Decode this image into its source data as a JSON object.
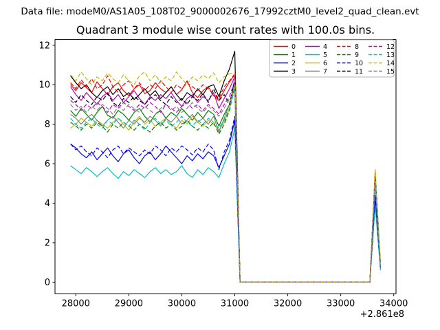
{
  "header": {
    "data_file_label": "Data file: modeM0/AS1A05_108T02_9000002676_17992cztM0_level2_quad_clean.evt"
  },
  "chart_title": "Quadrant 3 module wise count rates with 100.0s bins.",
  "chart_data": {
    "type": "line",
    "title": "Quadrant 3 module wise count rates with 100.0s bins.",
    "xlabel": "",
    "ylabel": "",
    "grid": false,
    "legend_position": "upper right",
    "x_offset_label": "+2.861e8",
    "xticks": [
      28000,
      29000,
      30000,
      31000,
      32000,
      33000,
      34000
    ],
    "yticks": [
      0,
      2,
      4,
      6,
      8,
      10,
      12
    ],
    "xlim": [
      27607,
      34043
    ],
    "ylim": [
      -0.585,
      12.285
    ],
    "x": [
      27900,
      28000,
      28100,
      28200,
      28300,
      28400,
      28500,
      28600,
      28700,
      28800,
      28900,
      29000,
      29100,
      29200,
      29300,
      29400,
      29500,
      29600,
      29700,
      29800,
      29900,
      30000,
      30100,
      30200,
      30300,
      30400,
      30500,
      30600,
      30700,
      30800,
      30900,
      31000,
      31100,
      33550,
      33650,
      33750
    ],
    "series": [
      {
        "name": "0",
        "color": "#ff0000",
        "dashed": false,
        "values": [
          10.0,
          9.7,
          10.1,
          9.85,
          9.6,
          10.15,
          9.8,
          9.5,
          9.9,
          10.1,
          9.7,
          9.45,
          9.8,
          10.0,
          9.55,
          9.7,
          10.1,
          9.8,
          9.6,
          9.9,
          9.5,
          9.75,
          10.2,
          9.6,
          9.35,
          9.7,
          9.9,
          9.45,
          9.2,
          9.7,
          10.15,
          10.5,
          0,
          0,
          5.5,
          0.9
        ]
      },
      {
        "name": "1",
        "color": "#008000",
        "dashed": false,
        "values": [
          8.7,
          8.4,
          8.8,
          8.5,
          8.2,
          8.6,
          8.9,
          8.45,
          8.3,
          8.7,
          8.5,
          8.2,
          8.6,
          8.8,
          8.4,
          8.1,
          8.5,
          8.7,
          8.3,
          8.6,
          8.4,
          8.8,
          8.5,
          8.2,
          8.6,
          8.3,
          8.7,
          8.5,
          7.9,
          8.5,
          9.0,
          10.2,
          0,
          0,
          5.3,
          0.8
        ]
      },
      {
        "name": "2",
        "color": "#0000ff",
        "dashed": false,
        "values": [
          7.0,
          6.8,
          6.5,
          6.3,
          6.6,
          6.2,
          6.5,
          6.8,
          6.4,
          6.1,
          6.5,
          6.7,
          6.3,
          6.0,
          6.4,
          6.6,
          6.2,
          6.5,
          6.9,
          6.6,
          6.3,
          6.0,
          6.4,
          6.15,
          6.5,
          6.25,
          6.6,
          6.4,
          5.8,
          6.4,
          7.0,
          8.2,
          0,
          0,
          4.3,
          0.7
        ]
      },
      {
        "name": "3",
        "color": "#000000",
        "dashed": false,
        "values": [
          10.45,
          10.1,
          9.8,
          10.0,
          9.6,
          9.35,
          9.7,
          9.9,
          9.5,
          9.8,
          9.4,
          9.6,
          9.25,
          9.5,
          9.8,
          9.45,
          9.7,
          9.3,
          9.6,
          9.9,
          9.5,
          9.2,
          9.6,
          9.4,
          9.8,
          9.5,
          9.9,
          10.0,
          9.4,
          10.2,
          10.8,
          11.7,
          0,
          0,
          5.4,
          0.85
        ]
      },
      {
        "name": "4",
        "color": "#bf00bf",
        "dashed": false,
        "values": [
          9.9,
          9.5,
          9.2,
          9.6,
          9.3,
          9.0,
          9.4,
          9.6,
          9.2,
          9.5,
          9.1,
          9.4,
          9.7,
          9.3,
          9.0,
          9.4,
          9.2,
          9.5,
          9.3,
          9.6,
          9.2,
          8.9,
          9.3,
          9.5,
          9.1,
          9.4,
          9.2,
          9.6,
          8.8,
          9.3,
          9.8,
          10.4,
          0,
          0,
          5.2,
          0.8
        ]
      },
      {
        "name": "5",
        "color": "#00bfbf",
        "dashed": false,
        "values": [
          5.9,
          5.7,
          5.5,
          5.8,
          5.6,
          5.35,
          5.6,
          5.8,
          5.5,
          5.25,
          5.6,
          5.4,
          5.7,
          5.5,
          5.3,
          5.6,
          5.8,
          5.5,
          5.7,
          5.45,
          5.6,
          5.9,
          5.5,
          5.3,
          5.7,
          5.45,
          5.8,
          5.6,
          5.3,
          6.0,
          6.6,
          7.8,
          0,
          0,
          3.9,
          0.6
        ]
      },
      {
        "name": "6",
        "color": "#bfbf00",
        "dashed": false,
        "values": [
          7.8,
          8.0,
          8.3,
          8.1,
          7.9,
          8.2,
          8.0,
          7.8,
          8.1,
          8.3,
          8.0,
          7.7,
          8.1,
          8.4,
          8.0,
          8.2,
          7.9,
          8.1,
          8.3,
          8.0,
          7.8,
          8.2,
          8.0,
          8.4,
          8.1,
          7.9,
          8.2,
          8.0,
          7.7,
          8.1,
          8.8,
          10.0,
          0,
          0,
          5.7,
          0.95
        ]
      },
      {
        "name": "7",
        "color": "#808080",
        "dashed": false,
        "values": [
          8.5,
          8.3,
          8.0,
          8.3,
          8.5,
          8.2,
          7.9,
          8.2,
          8.4,
          8.1,
          7.8,
          8.2,
          8.0,
          8.3,
          8.1,
          8.4,
          8.2,
          7.9,
          8.3,
          8.1,
          8.4,
          8.0,
          8.2,
          8.5,
          8.1,
          8.3,
          8.0,
          8.4,
          7.6,
          8.3,
          9.0,
          10.1,
          0,
          0,
          5.3,
          0.8
        ]
      },
      {
        "name": "8",
        "color": "#ff0000",
        "dashed": true,
        "values": [
          10.1,
          9.8,
          10.25,
          9.9,
          10.3,
          9.8,
          10.0,
          10.45,
          9.9,
          9.6,
          10.0,
          10.2,
          9.8,
          10.1,
          9.7,
          10.0,
          9.8,
          10.2,
          9.9,
          9.6,
          10.0,
          9.8,
          10.1,
          9.9,
          9.7,
          10.0,
          9.8,
          9.5,
          9.3,
          9.9,
          10.2,
          10.55,
          0,
          0,
          5.6,
          0.9
        ]
      },
      {
        "name": "9",
        "color": "#008000",
        "dashed": true,
        "values": [
          8.1,
          7.9,
          7.7,
          8.0,
          7.8,
          8.1,
          7.9,
          7.6,
          8.0,
          7.8,
          8.1,
          7.9,
          7.7,
          8.0,
          7.8,
          7.6,
          7.9,
          8.1,
          7.8,
          8.0,
          7.7,
          7.9,
          8.2,
          7.9,
          7.7,
          8.0,
          7.8,
          8.1,
          7.5,
          8.0,
          8.7,
          9.9,
          0,
          0,
          5.2,
          0.75
        ]
      },
      {
        "name": "10",
        "color": "#0000ff",
        "dashed": true,
        "values": [
          7.0,
          6.7,
          6.9,
          6.6,
          6.4,
          6.8,
          6.6,
          6.3,
          6.7,
          6.9,
          6.5,
          6.8,
          6.6,
          6.4,
          6.7,
          6.5,
          6.9,
          6.7,
          6.4,
          6.8,
          6.6,
          6.9,
          6.7,
          6.45,
          6.8,
          6.6,
          7.0,
          6.7,
          5.7,
          6.6,
          7.2,
          8.4,
          0,
          0,
          4.4,
          0.7
        ]
      },
      {
        "name": "11",
        "color": "#000000",
        "dashed": true,
        "values": [
          9.4,
          9.1,
          9.5,
          9.2,
          9.0,
          9.4,
          9.2,
          9.55,
          9.1,
          8.9,
          9.3,
          9.1,
          9.4,
          9.2,
          9.0,
          9.3,
          9.5,
          9.2,
          9.0,
          9.4,
          9.1,
          9.3,
          9.0,
          9.4,
          9.2,
          9.55,
          9.1,
          9.8,
          9.2,
          9.5,
          9.0,
          10.3,
          0,
          0,
          5.4,
          0.85
        ]
      },
      {
        "name": "12",
        "color": "#bf00bf",
        "dashed": true,
        "values": [
          9.2,
          9.0,
          8.7,
          9.0,
          8.8,
          9.1,
          8.9,
          8.6,
          9.0,
          8.8,
          9.1,
          8.9,
          8.7,
          9.0,
          8.8,
          9.1,
          8.9,
          8.6,
          9.0,
          8.8,
          8.6,
          8.9,
          9.1,
          8.8,
          9.0,
          8.7,
          9.0,
          8.8,
          8.5,
          9.0,
          9.4,
          10.2,
          0,
          0,
          5.3,
          0.8
        ]
      },
      {
        "name": "13",
        "color": "#00bfbf",
        "dashed": true,
        "values": [
          8.3,
          8.0,
          7.8,
          8.1,
          8.3,
          8.0,
          7.8,
          8.2,
          8.0,
          8.3,
          8.1,
          7.9,
          8.2,
          8.0,
          7.7,
          8.1,
          8.3,
          8.0,
          8.2,
          7.9,
          8.1,
          8.4,
          8.1,
          7.9,
          8.2,
          8.0,
          8.3,
          8.1,
          7.8,
          8.2,
          8.8,
          9.8,
          0,
          0,
          5.1,
          0.75
        ]
      },
      {
        "name": "14",
        "color": "#bfbf00",
        "dashed": true,
        "values": [
          10.5,
          10.2,
          10.65,
          10.3,
          10.0,
          10.4,
          10.2,
          10.6,
          10.3,
          10.1,
          10.5,
          10.2,
          10.0,
          10.45,
          10.65,
          10.2,
          10.5,
          10.1,
          10.4,
          10.2,
          10.65,
          10.3,
          10.0,
          10.4,
          10.2,
          10.5,
          10.3,
          10.6,
          10.1,
          10.4,
          10.55,
          10.6,
          0,
          0,
          5.7,
          0.9
        ]
      },
      {
        "name": "15",
        "color": "#808080",
        "dashed": true,
        "values": [
          9.0,
          8.7,
          8.9,
          8.6,
          8.9,
          8.7,
          9.0,
          8.8,
          8.5,
          8.9,
          8.7,
          9.0,
          8.8,
          8.6,
          8.9,
          8.7,
          8.5,
          8.8,
          9.0,
          8.7,
          8.9,
          8.6,
          8.8,
          9.1,
          8.8,
          8.6,
          8.9,
          8.7,
          8.4,
          8.8,
          9.3,
          9.6,
          0,
          0,
          5.2,
          0.8
        ]
      }
    ]
  }
}
